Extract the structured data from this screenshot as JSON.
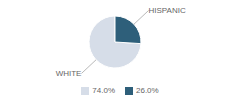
{
  "chart_data": {
    "type": "pie",
    "categories": [
      "WHITE",
      "HISPANIC"
    ],
    "values": [
      74.0,
      26.0
    ],
    "value_labels": [
      "74.0%",
      "26.0%"
    ],
    "colors": [
      "#d6dde8",
      "#2e5f7a"
    ],
    "legend": "bottom"
  }
}
